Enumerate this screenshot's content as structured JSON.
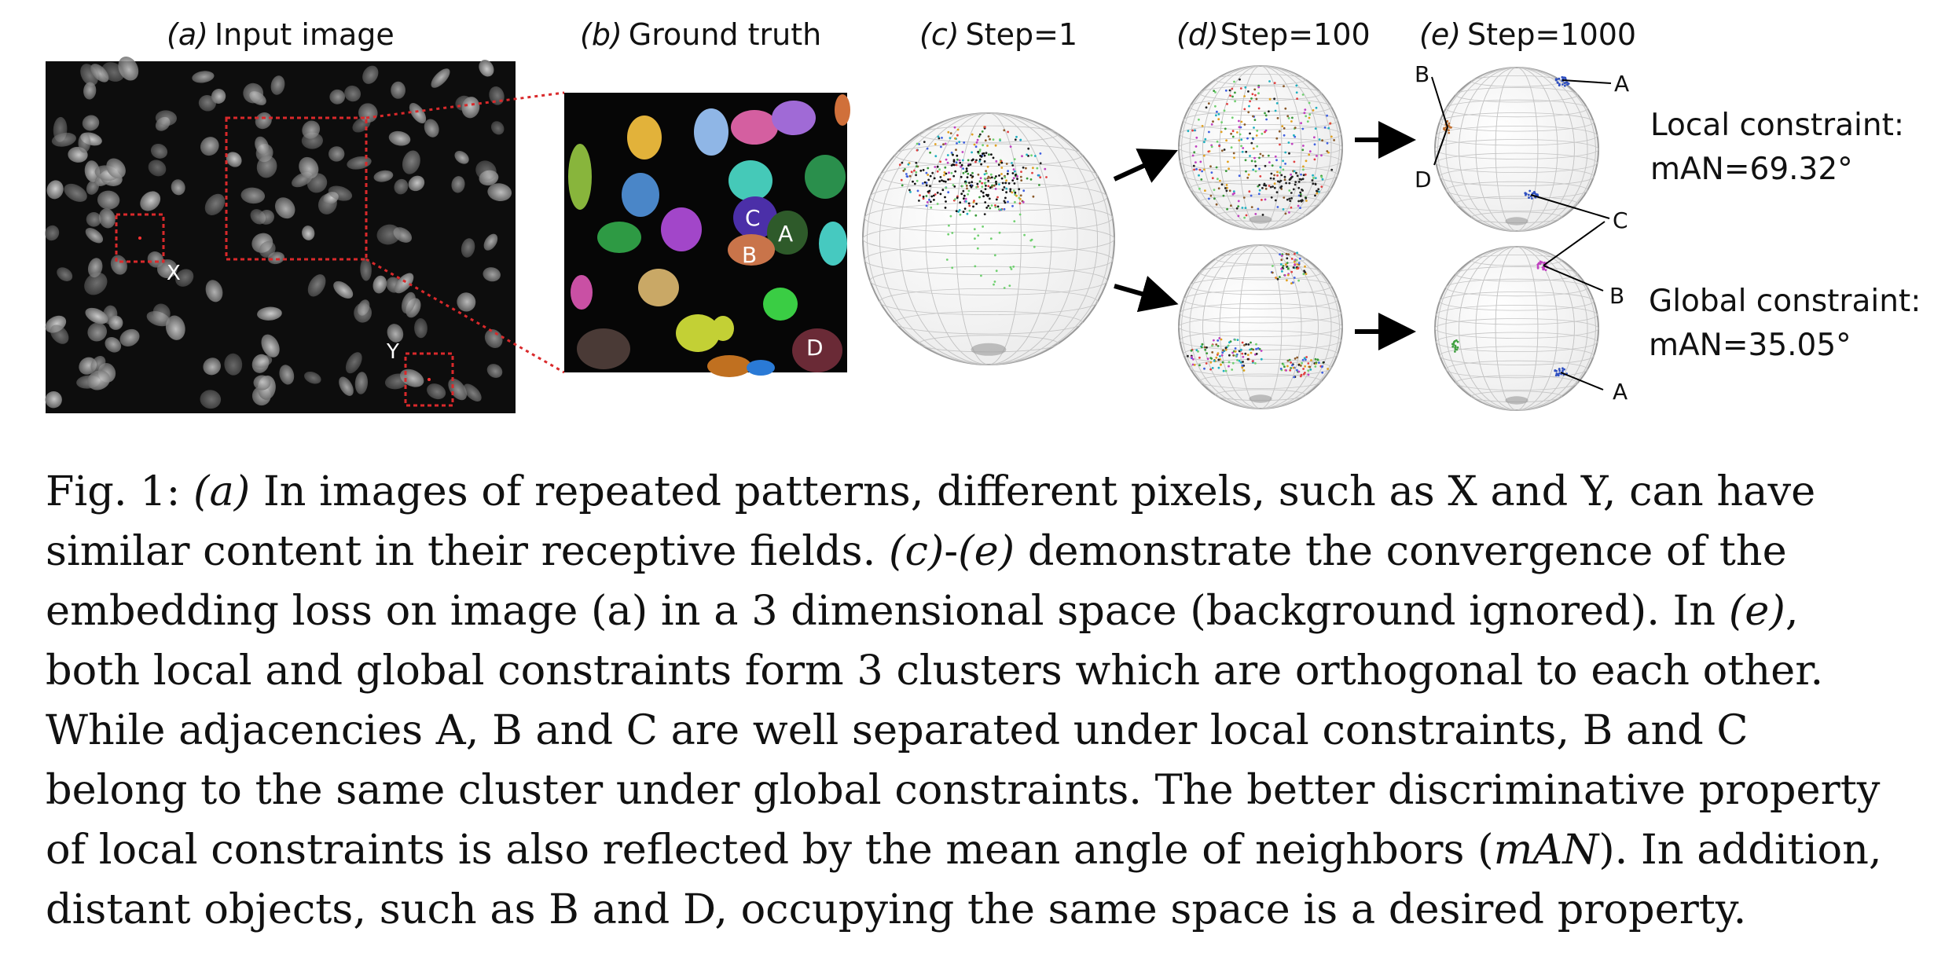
{
  "panels": {
    "a": {
      "label": "(a)",
      "title": "Input image",
      "markers": [
        "X",
        "Y"
      ]
    },
    "b": {
      "label": "(b)",
      "title": "Ground truth",
      "markers": [
        "C",
        "A",
        "B",
        "D"
      ]
    },
    "c": {
      "label": "(c)",
      "title": "Step=1"
    },
    "d": {
      "label": "(d)",
      "title": "Step=100"
    },
    "e": {
      "label": "(e)",
      "title": "Step=1000",
      "top_labels": [
        "B",
        "A",
        "D",
        "C"
      ],
      "bottom_labels": [
        "C",
        "B",
        "A"
      ]
    }
  },
  "local": {
    "line1": "Local constraint:",
    "line2": "mAN=69.32°"
  },
  "global": {
    "line1": "Global constraint:",
    "line2": "mAN=35.05°"
  },
  "caption": {
    "l1a": "Fig. 1: ",
    "l1b": "(a)",
    "l1c": " In images of repeated patterns, different pixels, such as X and Y, can have",
    "l2a": "similar content in their receptive fields. ",
    "l2b": "(c)",
    "l2c": "-",
    "l2d": "(e)",
    "l2e": " demonstrate the convergence of the",
    "l3a": "embedding loss on image (a) in a 3 dimensional space (background ignored). In ",
    "l3b": "(e)",
    "l3c": ",",
    "l4": "both local and global constraints form 3 clusters which are orthogonal to each other.",
    "l5": "While adjacencies A, B and C are well separated under local constraints, B and C",
    "l6": "belong to the same cluster under global constraints. The better discriminative property",
    "l7a": "of local constraints is also reflected by the mean angle of neighbors (",
    "l7b": "mAN",
    "l7c": "). In addition,",
    "l8": "distant objects, such as B and D, occupying the same space is a desired property."
  },
  "colors": {
    "roi_box": "#d9292b",
    "sphere_grid": "#b8b8b8"
  }
}
